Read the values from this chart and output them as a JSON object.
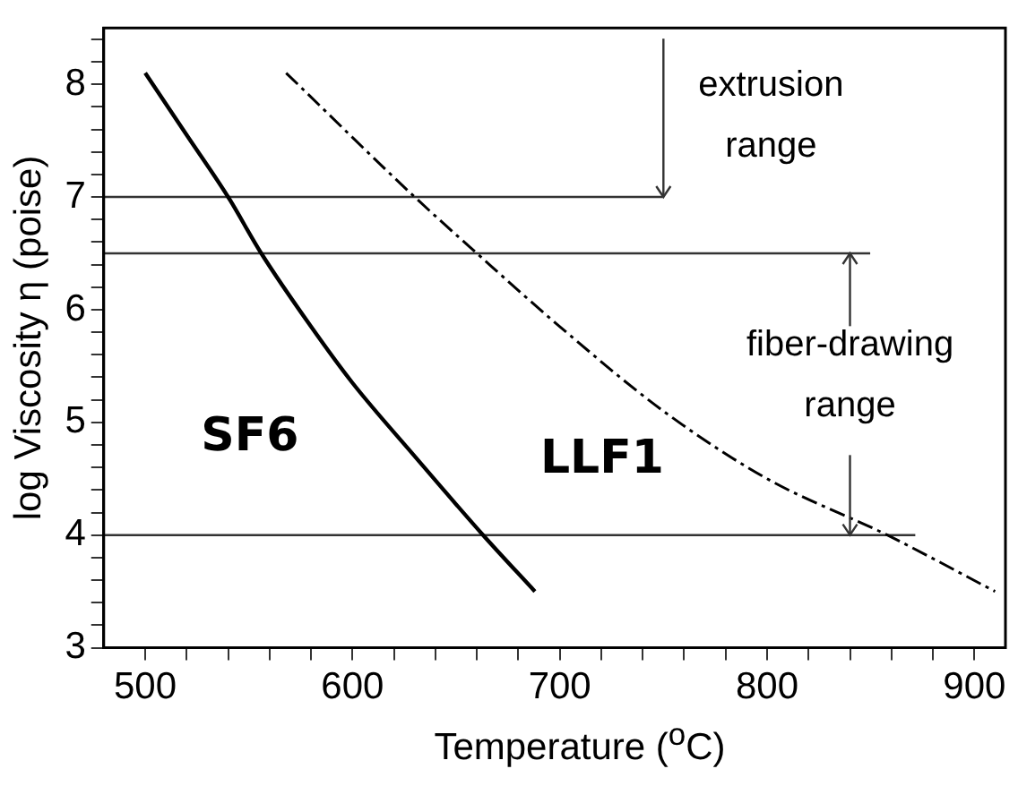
{
  "chart_data": {
    "type": "line",
    "xlabel": "Temperature ($^{o}$C)",
    "ylabel": "log Viscosity η (poise)",
    "xlim": [
      480,
      915
    ],
    "ylim": [
      3,
      8.5
    ],
    "xticks": [
      500,
      {
        "value": 520,
        "label": null
      },
      {
        "value": 540,
        "label": null
      },
      {
        "value": 560,
        "label": null
      },
      {
        "value": 580,
        "label": null
      },
      600,
      {
        "value": 620,
        "label": null
      },
      {
        "value": 640,
        "label": null
      },
      {
        "value": 660,
        "label": null
      },
      {
        "value": 680,
        "label": null
      },
      700,
      {
        "value": 720,
        "label": null
      },
      {
        "value": 740,
        "label": null
      },
      {
        "value": 760,
        "label": null
      },
      {
        "value": 780,
        "label": null
      },
      800,
      {
        "value": 820,
        "label": null
      },
      {
        "value": 840,
        "label": null
      },
      {
        "value": 860,
        "label": null
      },
      {
        "value": 880,
        "label": null
      },
      900
    ],
    "yticks": [
      3,
      {
        "value": 3.2,
        "label": null
      },
      {
        "value": 3.4,
        "label": null
      },
      {
        "value": 3.6,
        "label": null
      },
      {
        "value": 3.8,
        "label": null
      },
      4,
      {
        "value": 4.2,
        "label": null
      },
      {
        "value": 4.4,
        "label": null
      },
      {
        "value": 4.6,
        "label": null
      },
      {
        "value": 4.8,
        "label": null
      },
      5,
      {
        "value": 5.2,
        "label": null
      },
      {
        "value": 5.4,
        "label": null
      },
      {
        "value": 5.6,
        "label": null
      },
      {
        "value": 5.8,
        "label": null
      },
      6,
      {
        "value": 6.2,
        "label": null
      },
      {
        "value": 6.4,
        "label": null
      },
      {
        "value": 6.6,
        "label": null
      },
      {
        "value": 6.8,
        "label": null
      },
      7,
      {
        "value": 7.2,
        "label": null
      },
      {
        "value": 7.4,
        "label": null
      },
      {
        "value": 7.6,
        "label": null
      },
      {
        "value": 7.8,
        "label": null
      },
      8,
      {
        "value": 8.2,
        "label": null
      },
      {
        "value": 8.4,
        "label": null
      }
    ],
    "grid": false,
    "legend": false,
    "marker": "none",
    "series": [
      {
        "name": "SF6",
        "color": "#000000",
        "line_style": "solid",
        "x": [
          500,
          520,
          540,
          556,
          580,
          600,
          630,
          663,
          688
        ],
        "values": [
          8.1,
          7.55,
          7.0,
          6.5,
          5.85,
          5.35,
          4.7,
          4.0,
          3.5
        ]
      },
      {
        "name": "LLF1",
        "color": "#000000",
        "line_style": "dashed",
        "x": [
          568,
          630,
          660,
          700,
          750,
          800,
          858,
          910
        ],
        "values": [
          8.1,
          7.0,
          6.5,
          5.85,
          5.1,
          4.5,
          4.0,
          3.5
        ]
      }
    ],
    "ref_lines": [
      {
        "axis": "y",
        "value": 7,
        "color": "#333333"
      },
      {
        "axis": "y",
        "value": 6.5,
        "color": "#333333"
      },
      {
        "axis": "y",
        "value": 4,
        "color": "#333333"
      }
    ],
    "annotations": [
      {
        "text": "extrusion range",
        "x": 750,
        "y": 7
      },
      {
        "text": "fiber-drawing range",
        "x": 840,
        "y": 6.5
      }
    ]
  }
}
